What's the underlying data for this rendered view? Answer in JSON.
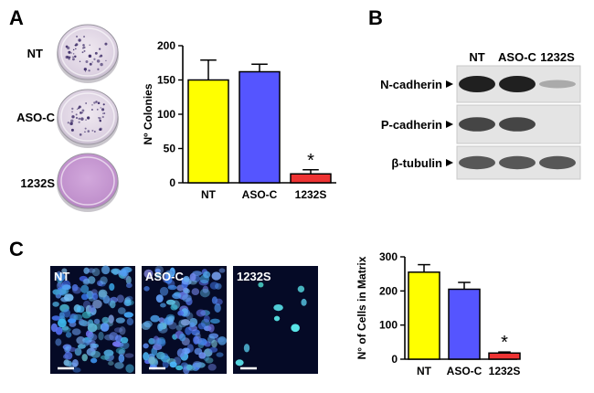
{
  "panels": {
    "a": "A",
    "b": "B",
    "c": "C"
  },
  "dishes": [
    {
      "label": "NT",
      "colony_density": "medium"
    },
    {
      "label": "ASO-C",
      "colony_density": "medium"
    },
    {
      "label": "1232S",
      "colony_density": "none"
    }
  ],
  "blot": {
    "lanes": [
      "NT",
      "ASO-C",
      "1232S"
    ],
    "rows": [
      {
        "label": "N-cadherin",
        "intensity": [
          1.0,
          1.0,
          0.25
        ]
      },
      {
        "label": "P-cadherin",
        "intensity": [
          0.8,
          0.8,
          0.0
        ]
      },
      {
        "label": "β-tubulin",
        "intensity": [
          0.7,
          0.7,
          0.7
        ]
      }
    ]
  },
  "micro": [
    {
      "label": "NT",
      "cell_density": "high"
    },
    {
      "label": "ASO-C",
      "cell_density": "high"
    },
    {
      "label": "1232S",
      "cell_density": "low"
    }
  ],
  "chart_data": [
    {
      "type": "bar",
      "categories": [
        "NT",
        "ASO-C",
        "1232S"
      ],
      "values": [
        150,
        162,
        13
      ],
      "errors": [
        29,
        11,
        6
      ],
      "colors": [
        "#ffff00",
        "#5555ff",
        "#ee3333"
      ],
      "ylabel": "Nº Colonies",
      "ylim": [
        0,
        200
      ],
      "yticks": [
        0,
        50,
        100,
        150,
        200
      ],
      "annotation": {
        "category": "1232S",
        "text": "*"
      }
    },
    {
      "type": "bar",
      "categories": [
        "NT",
        "ASO-C",
        "1232S"
      ],
      "values": [
        255,
        205,
        18
      ],
      "errors": [
        22,
        20,
        3
      ],
      "colors": [
        "#ffff00",
        "#5555ff",
        "#ee3333"
      ],
      "ylabel": "N° of Cells in Matrix",
      "ylim": [
        0,
        300
      ],
      "yticks": [
        0,
        100,
        200,
        300
      ],
      "annotation": {
        "category": "1232S",
        "text": "*"
      }
    }
  ]
}
